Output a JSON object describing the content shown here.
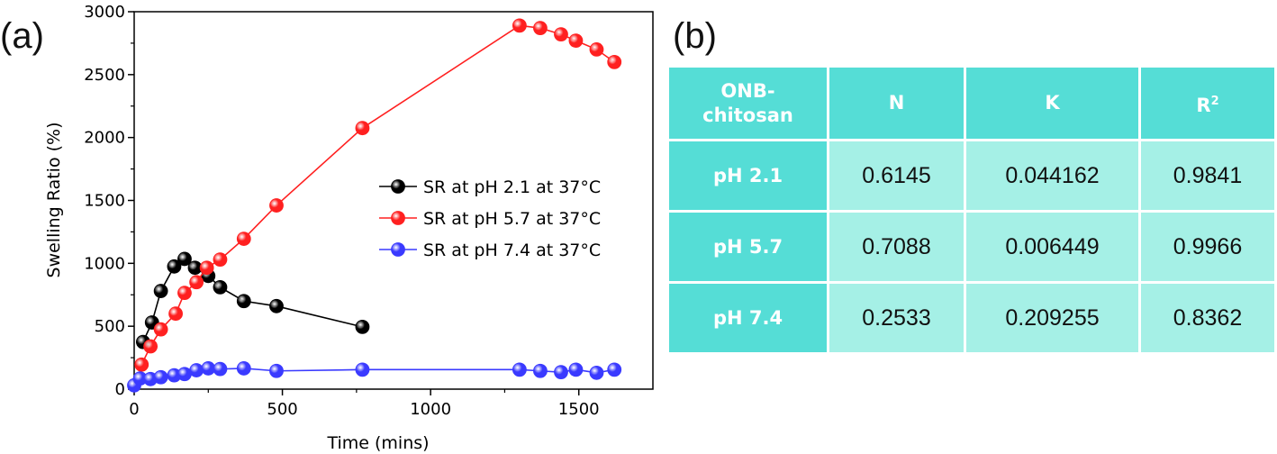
{
  "panels": {
    "a_label": "(a)",
    "b_label": "(b)"
  },
  "chart_data": {
    "type": "line",
    "title": "",
    "xlabel": "Time (mins)",
    "ylabel": "Swelling Ratio (%)",
    "xlim": [
      0,
      1750
    ],
    "ylim": [
      0,
      3000
    ],
    "xticks": [
      0,
      500,
      1000,
      1500
    ],
    "yticks": [
      0,
      500,
      1000,
      1500,
      2000,
      2500,
      3000
    ],
    "grid": false,
    "legend_position": "center-right",
    "series": [
      {
        "name": "SR at pH 2.1 at 37°C",
        "color": "#000000",
        "x": [
          30,
          60,
          90,
          135,
          170,
          205,
          250,
          290,
          370,
          480,
          770
        ],
        "y": [
          375,
          530,
          780,
          975,
          1035,
          965,
          900,
          810,
          700,
          660,
          495
        ]
      },
      {
        "name": "SR at pH 5.7 at 37°C",
        "color": "#ff2020",
        "x": [
          25,
          55,
          90,
          140,
          170,
          210,
          245,
          290,
          370,
          480,
          770,
          1300,
          1370,
          1440,
          1490,
          1560,
          1620
        ],
        "y": [
          195,
          340,
          475,
          600,
          765,
          850,
          965,
          1030,
          1195,
          1460,
          2075,
          2890,
          2870,
          2820,
          2770,
          2700,
          2600
        ]
      },
      {
        "name": "SR at pH 7.4 at 37°C",
        "color": "#3a3aff",
        "x": [
          0,
          20,
          55,
          90,
          135,
          170,
          210,
          250,
          290,
          370,
          480,
          770,
          1300,
          1370,
          1440,
          1490,
          1560,
          1620
        ],
        "y": [
          30,
          85,
          80,
          95,
          110,
          120,
          150,
          165,
          160,
          165,
          145,
          155,
          155,
          145,
          135,
          155,
          130,
          155
        ]
      }
    ]
  },
  "table": {
    "header": {
      "col0": "ONB-\nchitosan",
      "col1": "N",
      "col2": "K",
      "col3_base": "R",
      "col3_sup": "2"
    },
    "rows": [
      {
        "label": "pH 2.1",
        "n": "0.6145",
        "k": "0.044162",
        "r2": "0.9841"
      },
      {
        "label": "pH 5.7",
        "n": "0.7088",
        "k": "0.006449",
        "r2": "0.9966"
      },
      {
        "label": "pH 7.4",
        "n": "0.2533",
        "k": "0.209255",
        "r2": "0.8362"
      }
    ]
  }
}
